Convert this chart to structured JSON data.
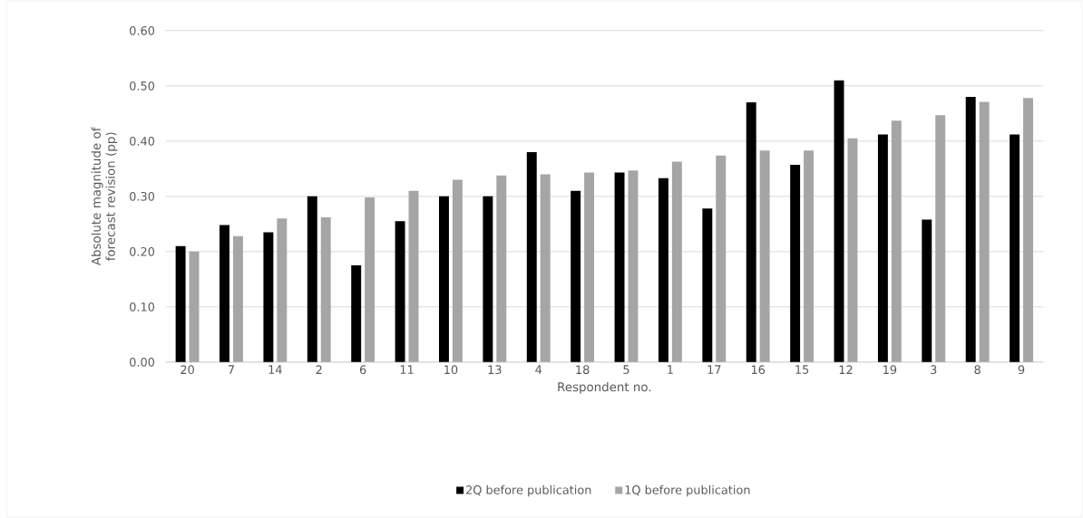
{
  "chart_data": {
    "type": "bar",
    "xlabel": "Respondent no.",
    "ylabel": "Absolute magnitude of forecast revision (pp)",
    "categories": [
      "20",
      "7",
      "14",
      "2",
      "6",
      "11",
      "10",
      "13",
      "4",
      "18",
      "5",
      "1",
      "17",
      "16",
      "15",
      "12",
      "19",
      "3",
      "8",
      "9"
    ],
    "series": [
      {
        "name": "2Q before publication",
        "color": "#000000",
        "values": [
          0.21,
          0.248,
          0.235,
          0.3,
          0.175,
          0.255,
          0.3,
          0.3,
          0.38,
          0.31,
          0.343,
          0.333,
          0.278,
          0.47,
          0.357,
          0.51,
          0.412,
          0.258,
          0.48,
          0.412
        ]
      },
      {
        "name": "1Q before publication",
        "color": "#a5a5a5",
        "values": [
          0.2,
          0.228,
          0.26,
          0.262,
          0.298,
          0.31,
          0.33,
          0.338,
          0.34,
          0.343,
          0.347,
          0.363,
          0.374,
          0.383,
          0.383,
          0.405,
          0.437,
          0.447,
          0.471,
          0.478
        ]
      }
    ],
    "ylim": [
      0,
      0.6
    ],
    "yticks": [
      {
        "value": 0,
        "label": "0.00"
      },
      {
        "value": 0.1,
        "label": "0.10"
      },
      {
        "value": 0.2,
        "label": "0.20"
      },
      {
        "value": 0.3,
        "label": "0.30"
      },
      {
        "value": 0.4,
        "label": "0.40"
      },
      {
        "value": 0.5,
        "label": "0.50"
      },
      {
        "value": 0.6,
        "label": "0.60"
      }
    ],
    "grid": "y",
    "legend": "bottom"
  }
}
